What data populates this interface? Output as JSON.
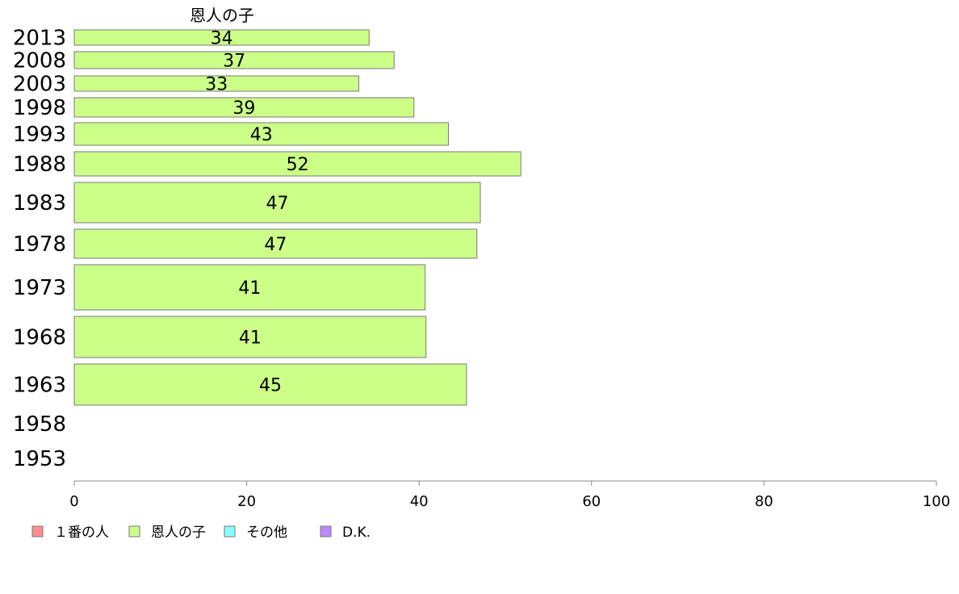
{
  "chart_data": {
    "type": "bar",
    "orientation": "horizontal",
    "stacked": true,
    "categories": [
      "2013",
      "2008",
      "2003",
      "1998",
      "1993",
      "1988",
      "1983",
      "1978",
      "1973",
      "1968",
      "1963",
      "1958",
      "1953"
    ],
    "series": [
      {
        "name": "１番の人",
        "color": "#ff8c8c",
        "values": [
          null,
          null,
          null,
          null,
          null,
          null,
          null,
          null,
          null,
          null,
          null,
          null,
          null
        ]
      },
      {
        "name": "恩人の子",
        "color": "#ccff88",
        "values": [
          34,
          37,
          33,
          39,
          43,
          52,
          47,
          47,
          41,
          41,
          45,
          null,
          null
        ],
        "data_labels": [
          "34",
          "37",
          "33",
          "39",
          "43",
          "52",
          "47",
          "47",
          "41",
          "41",
          "45",
          "",
          ""
        ]
      },
      {
        "name": "その他",
        "color": "#88ffff",
        "values": [
          null,
          null,
          null,
          null,
          null,
          null,
          null,
          null,
          null,
          null,
          null,
          null,
          null
        ]
      },
      {
        "name": "D.K.",
        "color": "#bb88ff",
        "values": [
          null,
          null,
          null,
          null,
          null,
          null,
          null,
          null,
          null,
          null,
          null,
          null,
          null
        ]
      }
    ],
    "bar_data_values": [
      34.2,
      37.1,
      33.0,
      39.4,
      43.4,
      51.8,
      47.1,
      46.7,
      40.7,
      40.8,
      45.5,
      null,
      null
    ],
    "series_header": "恩人の子",
    "xlim": [
      0,
      100
    ],
    "xticks": [
      "0",
      "20",
      "40",
      "60",
      "80",
      "100"
    ],
    "legend_position": "bottom-left",
    "grid": false
  }
}
